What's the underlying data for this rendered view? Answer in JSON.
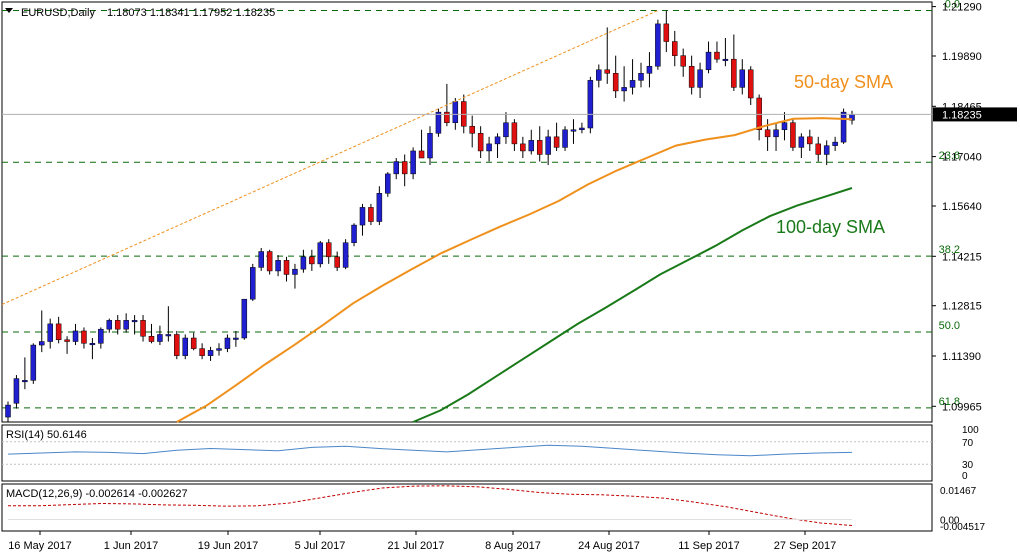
{
  "header": {
    "symbol": "EURUSD,Daily",
    "ohlc": "1.18073 1.18341 1.17952 1.18235"
  },
  "price_labels": [
    "1.21290",
    "1.19890",
    "1.18465",
    "1.17040",
    "1.15640",
    "1.14215",
    "1.12815",
    "1.11390",
    "1.09965"
  ],
  "current_price": "1.18235",
  "fib_levels": [
    {
      "label": "0.0",
      "price": 1.2118
    },
    {
      "label": "23.6",
      "price": 1.1688
    },
    {
      "label": "38.2",
      "price": 1.1422
    },
    {
      "label": "50.0",
      "price": 1.1207
    },
    {
      "label": "61.8",
      "price": 1.0992
    }
  ],
  "sma_labels": {
    "sma50": "50-day SMA",
    "sma100": "100-day SMA"
  },
  "colors": {
    "bull": "#2020d0",
    "bear": "#e01010",
    "sma50": "#f0901c",
    "sma100": "#1a7a1a",
    "fib": "#0a6a0a",
    "rsi": "#4a86c8",
    "macd": "#c00000",
    "grid": "#c8c8c8",
    "axis": "#000000"
  },
  "rsi": {
    "label": "RSI(14) 50.6146",
    "scale": [
      "100",
      "70",
      "30",
      "0"
    ]
  },
  "macd": {
    "label": "MACD(12,26,9) -0.002614 -0.002627",
    "scale": [
      "0.01467",
      "0.00",
      "-0.004517"
    ]
  },
  "x_dates": [
    "16 May 2017",
    "1 Jun 2017",
    "19 Jun 2017",
    "5 Jul 2017",
    "21 Jul 2017",
    "8 Aug 2017",
    "24 Aug 2017",
    "11 Sep 2017",
    "27 Sep 2017"
  ],
  "chart_data": {
    "type": "candlestick",
    "title": "EURUSD,Daily",
    "ylim": [
      1.0952,
      1.2142
    ],
    "candles": [
      [
        1.0966,
        1.101,
        1.0952,
        1.1
      ],
      [
        1.1005,
        1.1085,
        1.099,
        1.1075
      ],
      [
        1.107,
        1.1135,
        1.1045,
        1.107
      ],
      [
        1.107,
        1.1175,
        1.106,
        1.117
      ],
      [
        1.117,
        1.1268,
        1.115,
        1.118
      ],
      [
        1.118,
        1.1245,
        1.116,
        1.123
      ],
      [
        1.123,
        1.125,
        1.1175,
        1.1185
      ],
      [
        1.1185,
        1.1195,
        1.1145,
        1.118
      ],
      [
        1.118,
        1.123,
        1.117,
        1.121
      ],
      [
        1.121,
        1.122,
        1.116,
        1.1175
      ],
      [
        1.1175,
        1.119,
        1.113,
        1.1175
      ],
      [
        1.1175,
        1.122,
        1.116,
        1.1215
      ],
      [
        1.1215,
        1.1245,
        1.1205,
        1.124
      ],
      [
        1.124,
        1.1255,
        1.12,
        1.1215
      ],
      [
        1.1215,
        1.126,
        1.1205,
        1.124
      ],
      [
        1.124,
        1.1255,
        1.12,
        1.124
      ],
      [
        1.124,
        1.1255,
        1.118,
        1.1195
      ],
      [
        1.1195,
        1.123,
        1.1175,
        1.118
      ],
      [
        1.118,
        1.1225,
        1.117,
        1.12
      ],
      [
        1.12,
        1.128,
        1.118,
        1.12
      ],
      [
        1.12,
        1.121,
        1.113,
        1.114
      ],
      [
        1.114,
        1.12,
        1.113,
        1.119
      ],
      [
        1.119,
        1.1205,
        1.1155,
        1.116
      ],
      [
        1.116,
        1.1175,
        1.113,
        1.114
      ],
      [
        1.114,
        1.1165,
        1.1125,
        1.1155
      ],
      [
        1.1155,
        1.1175,
        1.114,
        1.116
      ],
      [
        1.116,
        1.12,
        1.115,
        1.119
      ],
      [
        1.119,
        1.121,
        1.1165,
        1.119
      ],
      [
        1.119,
        1.13,
        1.1185,
        1.13
      ],
      [
        1.13,
        1.14,
        1.1295,
        1.139
      ],
      [
        1.139,
        1.1445,
        1.138,
        1.1435
      ],
      [
        1.1435,
        1.144,
        1.137,
        1.138
      ],
      [
        1.138,
        1.1425,
        1.1365,
        1.141
      ],
      [
        1.141,
        1.142,
        1.135,
        1.137
      ],
      [
        1.137,
        1.14,
        1.133,
        1.1385
      ],
      [
        1.1385,
        1.144,
        1.1375,
        1.142
      ],
      [
        1.142,
        1.144,
        1.138,
        1.14
      ],
      [
        1.14,
        1.1465,
        1.139,
        1.146
      ],
      [
        1.146,
        1.147,
        1.14,
        1.142
      ],
      [
        1.142,
        1.1435,
        1.138,
        1.139
      ],
      [
        1.139,
        1.147,
        1.1385,
        1.146
      ],
      [
        1.146,
        1.1515,
        1.145,
        1.151
      ],
      [
        1.151,
        1.157,
        1.148,
        1.156
      ],
      [
        1.156,
        1.157,
        1.151,
        1.152
      ],
      [
        1.152,
        1.162,
        1.151,
        1.16
      ],
      [
        1.16,
        1.166,
        1.159,
        1.1655
      ],
      [
        1.1655,
        1.17,
        1.164,
        1.169
      ],
      [
        1.169,
        1.171,
        1.162,
        1.1655
      ],
      [
        1.1655,
        1.173,
        1.164,
        1.172
      ],
      [
        1.172,
        1.178,
        1.17,
        1.17
      ],
      [
        1.17,
        1.179,
        1.168,
        1.177
      ],
      [
        1.177,
        1.184,
        1.176,
        1.183
      ],
      [
        1.183,
        1.191,
        1.179,
        1.18
      ],
      [
        1.18,
        1.187,
        1.178,
        1.186
      ],
      [
        1.186,
        1.188,
        1.177,
        1.179
      ],
      [
        1.179,
        1.182,
        1.173,
        1.177
      ],
      [
        1.177,
        1.179,
        1.17,
        1.172
      ],
      [
        1.172,
        1.176,
        1.169,
        1.174
      ],
      [
        1.174,
        1.177,
        1.17,
        1.176
      ],
      [
        1.176,
        1.183,
        1.174,
        1.18
      ],
      [
        1.18,
        1.181,
        1.172,
        1.174
      ],
      [
        1.174,
        1.176,
        1.17,
        1.172
      ],
      [
        1.172,
        1.178,
        1.171,
        1.175
      ],
      [
        1.175,
        1.179,
        1.169,
        1.171
      ],
      [
        1.171,
        1.178,
        1.168,
        1.176
      ],
      [
        1.176,
        1.18,
        1.172,
        1.173
      ],
      [
        1.173,
        1.179,
        1.172,
        1.178
      ],
      [
        1.178,
        1.181,
        1.174,
        1.178
      ],
      [
        1.178,
        1.18,
        1.177,
        1.1785
      ],
      [
        1.1785,
        1.193,
        1.177,
        1.192
      ],
      [
        1.192,
        1.1965,
        1.19,
        1.195
      ],
      [
        1.195,
        1.207,
        1.191,
        1.194
      ],
      [
        1.194,
        1.199,
        1.187,
        1.189
      ],
      [
        1.189,
        1.196,
        1.186,
        1.19
      ],
      [
        1.19,
        1.198,
        1.188,
        1.192
      ],
      [
        1.192,
        1.197,
        1.19,
        1.194
      ],
      [
        1.194,
        1.2,
        1.19,
        1.196
      ],
      [
        1.196,
        1.2092,
        1.195,
        1.208
      ],
      [
        1.208,
        1.2118,
        1.2,
        1.203
      ],
      [
        1.203,
        1.206,
        1.196,
        1.199
      ],
      [
        1.199,
        1.201,
        1.193,
        1.196
      ],
      [
        1.196,
        1.199,
        1.188,
        1.19
      ],
      [
        1.19,
        1.197,
        1.187,
        1.195
      ],
      [
        1.195,
        1.203,
        1.194,
        1.2
      ],
      [
        1.2,
        1.203,
        1.197,
        1.198
      ],
      [
        1.198,
        1.204,
        1.196,
        1.198
      ],
      [
        1.198,
        1.205,
        1.189,
        1.19
      ],
      [
        1.19,
        1.198,
        1.188,
        1.195
      ],
      [
        1.195,
        1.196,
        1.185,
        1.187
      ],
      [
        1.187,
        1.188,
        1.175,
        1.178
      ],
      [
        1.178,
        1.181,
        1.172,
        1.176
      ],
      [
        1.176,
        1.18,
        1.172,
        1.178
      ],
      [
        1.178,
        1.183,
        1.175,
        1.18
      ],
      [
        1.18,
        1.181,
        1.172,
        1.173
      ],
      [
        1.173,
        1.177,
        1.17,
        1.176
      ],
      [
        1.176,
        1.178,
        1.172,
        1.174
      ],
      [
        1.174,
        1.176,
        1.169,
        1.171
      ],
      [
        1.171,
        1.175,
        1.168,
        1.1735
      ],
      [
        1.1735,
        1.176,
        1.172,
        1.1745
      ],
      [
        1.1745,
        1.184,
        1.174,
        1.183
      ],
      [
        1.1807,
        1.1834,
        1.1795,
        1.1824
      ]
    ],
    "sma50": {
      "from_index": 20,
      "values": [
        1.0952,
        1.0998,
        1.1055,
        1.1115,
        1.117,
        1.1228,
        1.1288,
        1.1338,
        1.1385,
        1.143,
        1.1468,
        1.1505,
        1.154,
        1.1578,
        1.1625,
        1.1665,
        1.17,
        1.1735,
        1.1752,
        1.1765,
        1.179,
        1.1811,
        1.1813,
        1.181
      ]
    },
    "sma100": {
      "from_index": 48,
      "values": [
        1.0952,
        1.0985,
        1.103,
        1.108,
        1.113,
        1.118,
        1.123,
        1.1275,
        1.1322,
        1.137,
        1.141,
        1.145,
        1.1495,
        1.1535,
        1.1565,
        1.159,
        1.1615
      ]
    },
    "rsi_values": [
      48,
      50,
      52,
      51,
      49,
      55,
      58,
      56,
      54,
      60,
      62,
      58,
      55,
      52,
      56,
      60,
      64,
      62,
      58,
      54,
      50,
      47,
      45,
      48,
      50,
      51
    ],
    "macd_values": [
      0.006,
      0.006,
      0.0065,
      0.007,
      0.0068,
      0.0064,
      0.0062,
      0.0058,
      0.006,
      0.0072,
      0.0095,
      0.0118,
      0.0138,
      0.0146,
      0.0147,
      0.0143,
      0.0132,
      0.0118,
      0.011,
      0.0108,
      0.0102,
      0.0093,
      0.0075,
      0.0055,
      0.003,
      0.0005,
      -0.0015,
      -0.0026
    ]
  }
}
